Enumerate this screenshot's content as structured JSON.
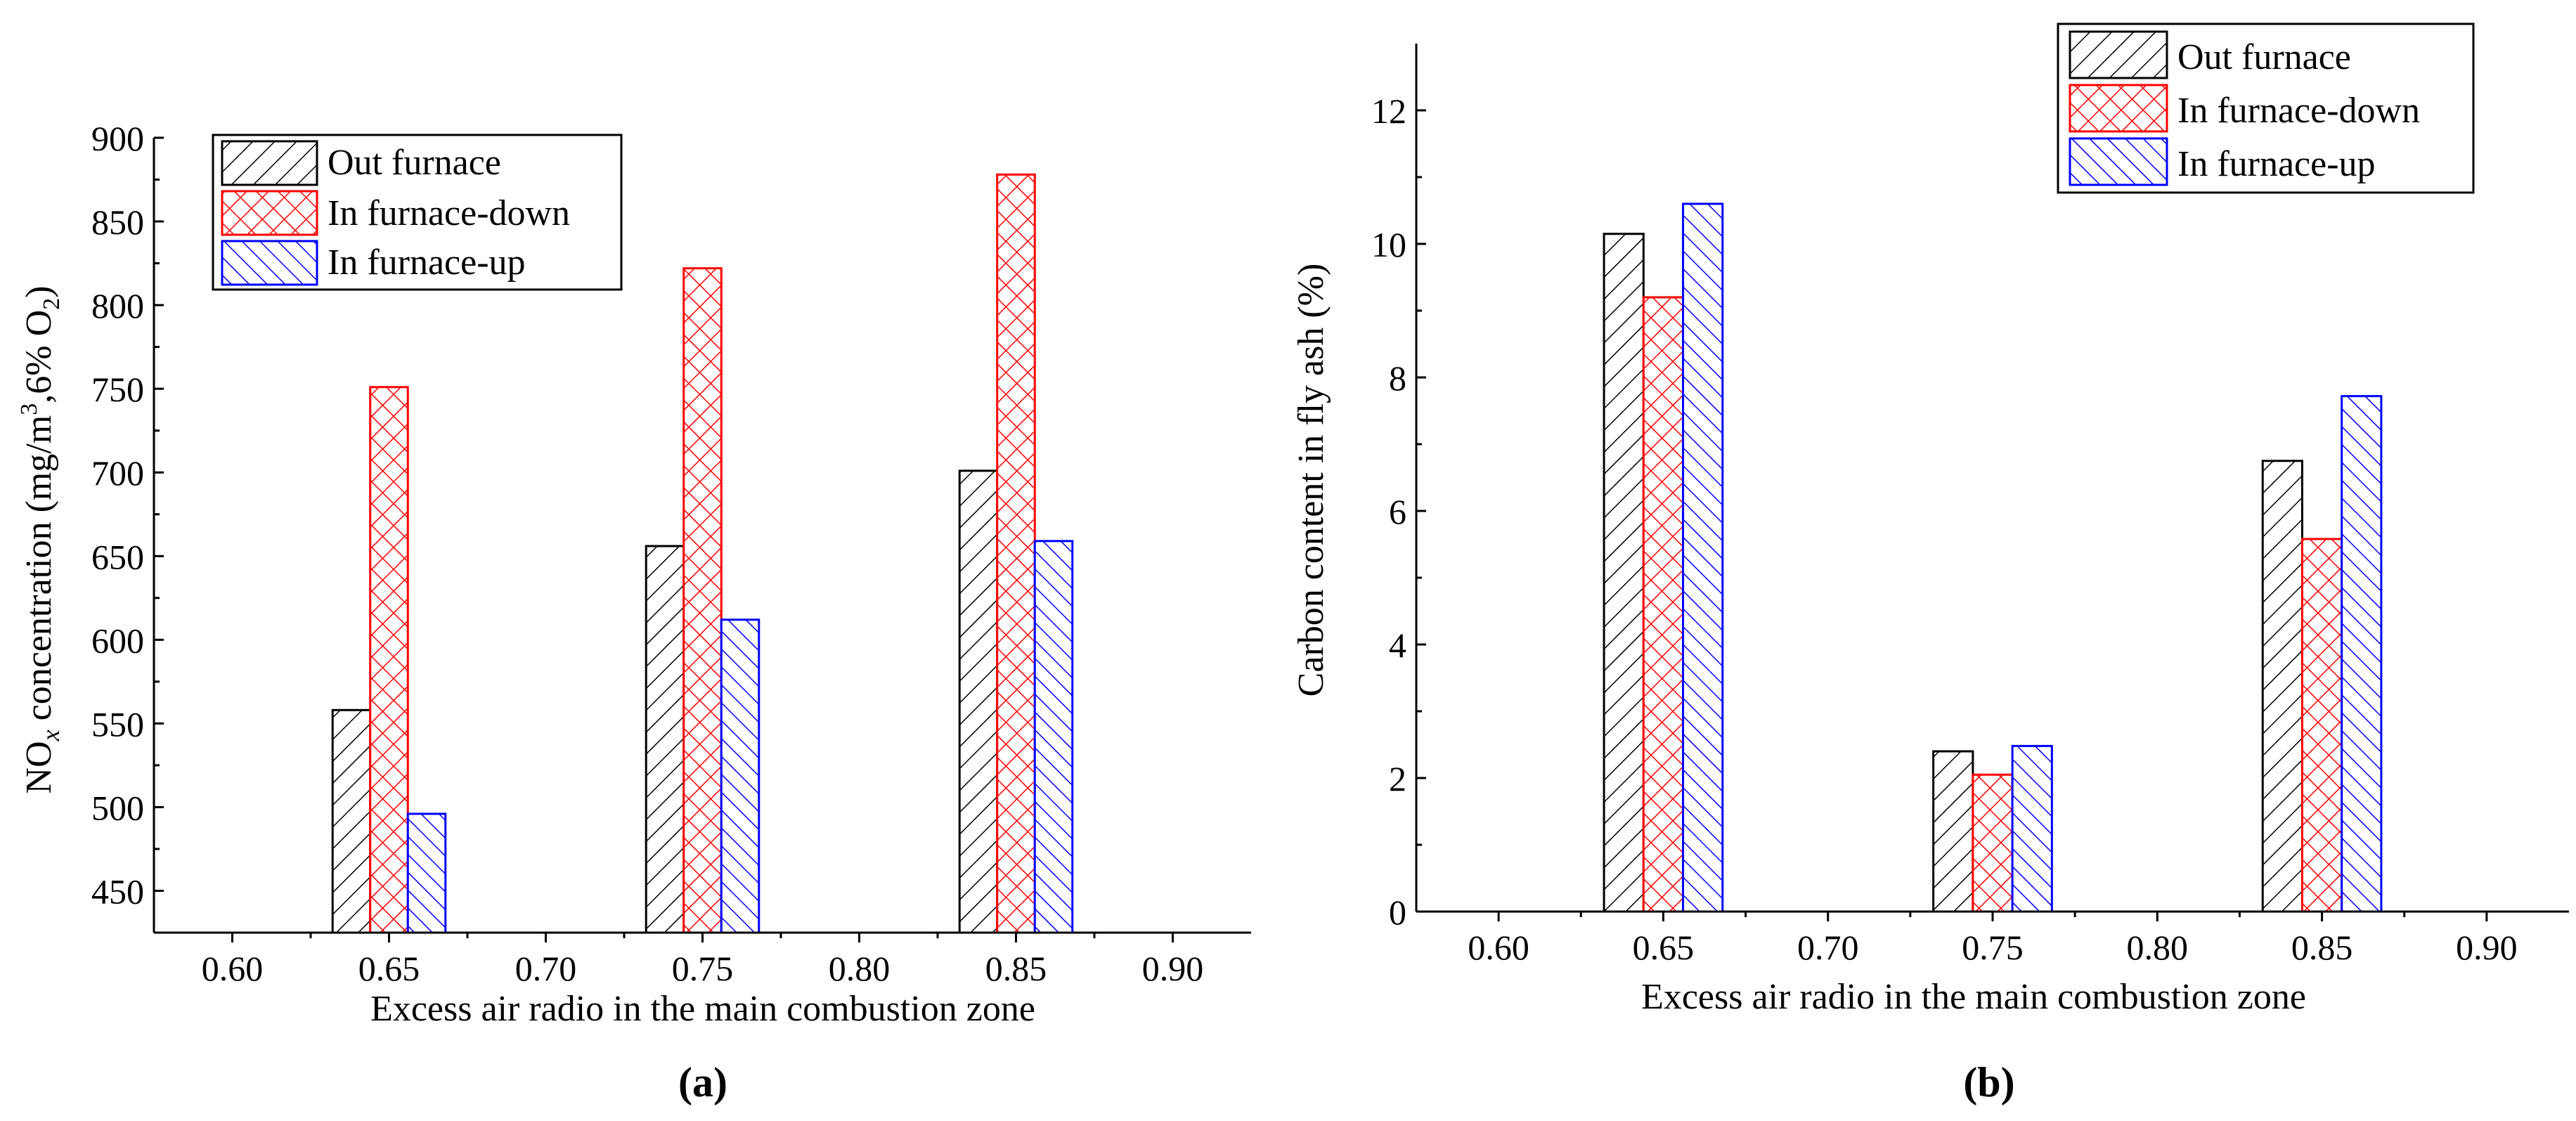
{
  "panel_labels": [
    "(a)",
    "(b)"
  ],
  "legend_entries": [
    "Out furnace",
    "In furnace-down",
    "In furnace-up"
  ],
  "colors": {
    "out": "#000000",
    "down": "#ff0000",
    "up": "#0000ff"
  },
  "chart_data": [
    {
      "type": "bar",
      "panel": "(a)",
      "categories": [
        "0.65",
        "0.75",
        "0.85"
      ],
      "x_ticks": [
        "0.60",
        "0.65",
        "0.70",
        "0.75",
        "0.80",
        "0.85",
        "0.90"
      ],
      "y_ticks": [
        "450",
        "500",
        "550",
        "600",
        "650",
        "700",
        "750",
        "800",
        "850",
        "900"
      ],
      "xlim": [
        0.575,
        0.925
      ],
      "ylim": [
        425,
        900
      ],
      "series": [
        {
          "name": "Out furnace",
          "values": [
            558,
            656,
            701
          ]
        },
        {
          "name": "In furnace-down",
          "values": [
            751,
            822,
            878
          ]
        },
        {
          "name": "In furnace-up",
          "values": [
            496,
            612,
            659
          ]
        }
      ],
      "xlabel": "Excess air radio in the main combustion zone",
      "ylabel_parts": [
        "NO",
        "x",
        " concentration (mg/m",
        "3",
        ",6% O",
        "2",
        ")"
      ],
      "legend_position": "top-left"
    },
    {
      "type": "bar",
      "panel": "(b)",
      "categories": [
        "0.65",
        "0.75",
        "0.85"
      ],
      "x_ticks": [
        "0.60",
        "0.65",
        "0.70",
        "0.75",
        "0.80",
        "0.85",
        "0.90"
      ],
      "y_ticks": [
        "0",
        "2",
        "4",
        "6",
        "8",
        "10",
        "12"
      ],
      "xlim": [
        0.575,
        0.925
      ],
      "ylim": [
        0,
        13
      ],
      "series": [
        {
          "name": "Out furnace",
          "values": [
            10.15,
            2.4,
            6.75
          ]
        },
        {
          "name": "In furnace-down",
          "values": [
            9.2,
            2.05,
            5.58
          ]
        },
        {
          "name": "In furnace-up",
          "values": [
            10.6,
            2.48,
            7.72
          ]
        }
      ],
      "xlabel": "Excess air radio in the main combustion zone",
      "ylabel": "Carbon content in fly ash (%)",
      "legend_position": "top-right"
    }
  ]
}
